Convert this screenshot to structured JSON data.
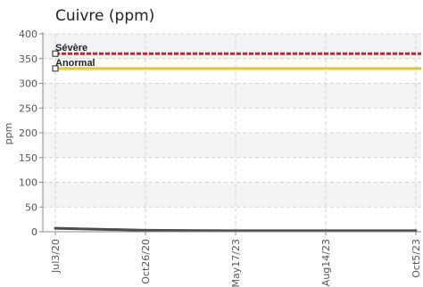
{
  "chart_data": {
    "type": "line",
    "title": "Cuivre (ppm)",
    "ylabel": "ppm",
    "xlabel": "",
    "ylim": [
      0,
      400
    ],
    "yticks": [
      0,
      50,
      100,
      150,
      200,
      250,
      300,
      350,
      400
    ],
    "x_ticks": [
      "Jul3/20",
      "Oct26/20",
      "May17/23",
      "Aug14/23",
      "Oct5/23"
    ],
    "grid": true,
    "thresholds": [
      {
        "label": "Sévère",
        "value": 360,
        "color": "#e41a1c"
      },
      {
        "label": "Anormal",
        "value": 330,
        "color": "#f0c419"
      }
    ],
    "series": [
      {
        "x": [
          "Jul3/20",
          "Oct26/20",
          "May17/23",
          "Aug14/23",
          "Oct5/23"
        ],
        "y": [
          7,
          3,
          2,
          2,
          2
        ],
        "color": "#4d4d4d"
      }
    ]
  }
}
